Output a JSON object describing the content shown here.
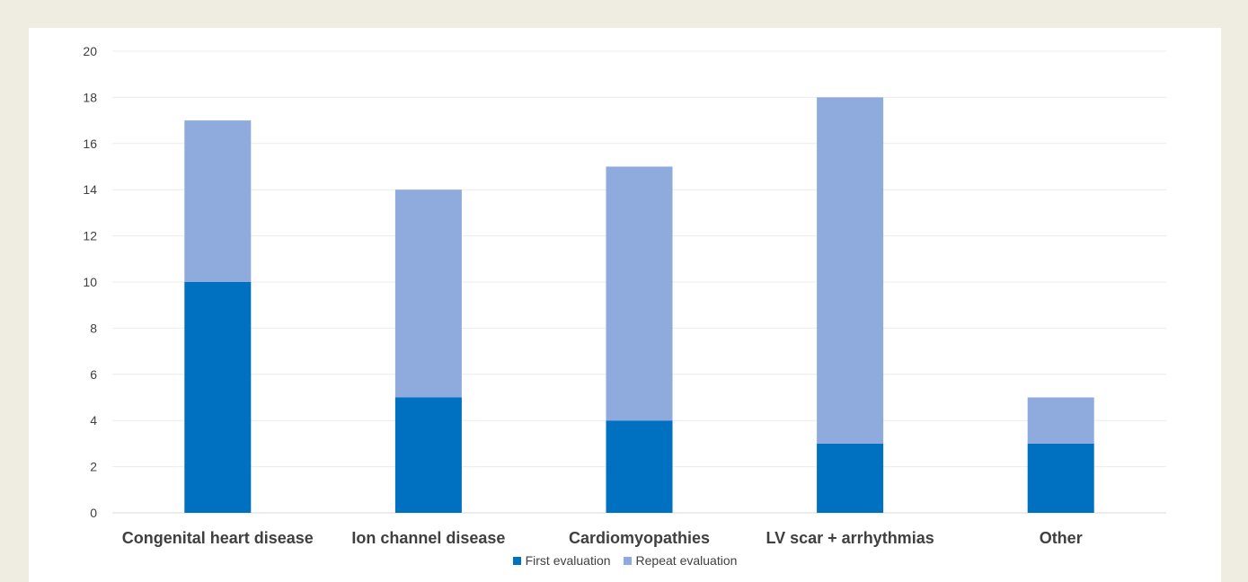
{
  "chart_data": {
    "type": "bar",
    "stacked": true,
    "categories": [
      "Congenital heart disease",
      "Ion channel disease",
      "Cardiomyopathies",
      "LV scar + arrhythmias",
      "Other"
    ],
    "series": [
      {
        "name": "First evaluation",
        "values": [
          10,
          5,
          4,
          3,
          3
        ],
        "color": "#0070c0"
      },
      {
        "name": "Repeat evaluation",
        "values": [
          7,
          9,
          11,
          15,
          2
        ],
        "color": "#8faadc"
      }
    ],
    "ylim": [
      0,
      20
    ],
    "yticks": [
      0,
      2,
      4,
      6,
      8,
      10,
      12,
      14,
      16,
      18,
      20
    ],
    "grid": true,
    "legend_position": "bottom"
  }
}
